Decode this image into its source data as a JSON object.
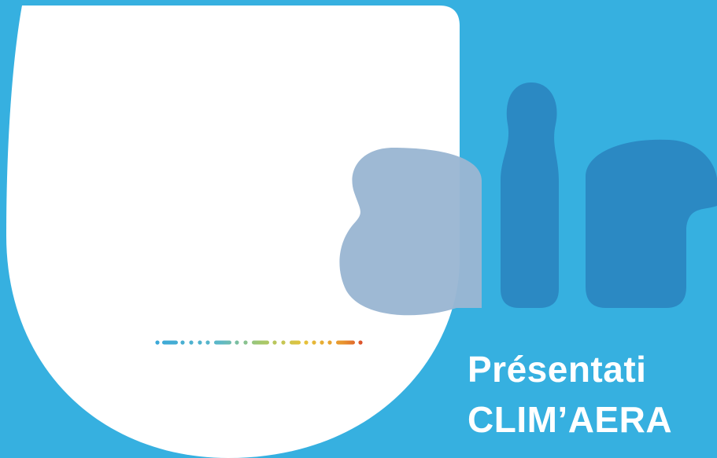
{
  "colors": {
    "background": "#36b0e0",
    "panel": "#ffffff",
    "logo_a": "#8fb4d3",
    "logo_ir": "#2b89c3",
    "title_text": "#ffffff"
  },
  "logo": {
    "word": "air"
  },
  "title": {
    "line1": "Présentati",
    "line2": "CLIM’AERA"
  },
  "dotted_line": {
    "gradient": [
      "#3aa8d8",
      "#5cb8c8",
      "#a6c86a",
      "#e6c23a",
      "#e8952e",
      "#d83a2a"
    ]
  }
}
